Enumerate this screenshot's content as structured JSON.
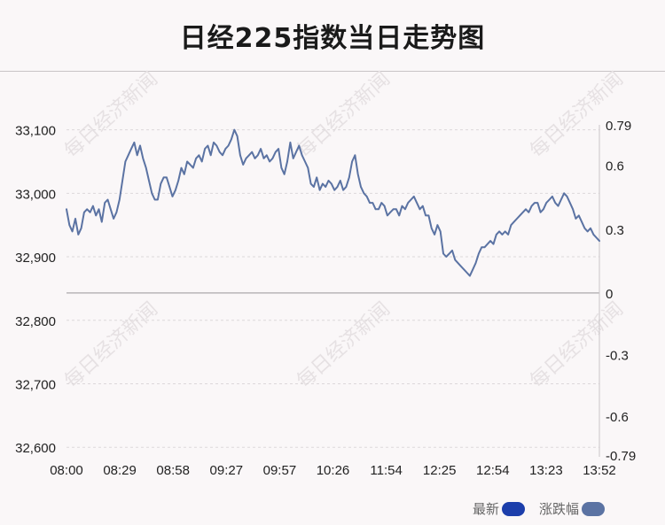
{
  "page": {
    "title": "日经225指数当日走势图",
    "watermark": "每日经济新闻"
  },
  "legend": {
    "latest_label": "最新",
    "latest_color": "#1c3eab",
    "change_label": "涨跌幅",
    "change_color": "#5b73a3"
  },
  "chart_data": {
    "type": "line",
    "xlabel": "",
    "ylabel": "",
    "x_ticks": [
      "08:00",
      "08:29",
      "08:58",
      "09:27",
      "09:57",
      "10:26",
      "11:54",
      "12:25",
      "12:54",
      "13:23",
      "13:52"
    ],
    "y_left_ticks": [
      {
        "value": 33100,
        "label": "33,100"
      },
      {
        "value": 33000,
        "label": "33,000"
      },
      {
        "value": 32900,
        "label": "32,900"
      },
      {
        "value": 32800,
        "label": "32,800"
      },
      {
        "value": 32700,
        "label": "32,700"
      },
      {
        "value": 32600,
        "label": "32,600"
      }
    ],
    "y_right_ticks": [
      {
        "value": 0.79,
        "label": "0.79"
      },
      {
        "value": 0.6,
        "label": "0.6"
      },
      {
        "value": 0.3,
        "label": "0.3"
      },
      {
        "value": 0,
        "label": "0"
      },
      {
        "value": -0.3,
        "label": "-0.3"
      },
      {
        "value": -0.6,
        "label": "-0.6"
      },
      {
        "value": -0.79,
        "label": "-0.79"
      }
    ],
    "ylim_left": [
      32585,
      33105
    ],
    "baseline": 32843,
    "grid": true,
    "line_color": "#5b73a3",
    "series": [
      {
        "values": [
          32975,
          32950,
          32940,
          32960,
          32935,
          32945,
          32970,
          32975,
          32970,
          32980,
          32965,
          32975,
          32955,
          32985,
          32990,
          32975,
          32960,
          32970,
          32990,
          33020,
          33050,
          33060,
          33070,
          33080,
          33060,
          33075,
          33055,
          33040,
          33020,
          33000,
          32990,
          32990,
          33015,
          33025,
          33025,
          33010,
          32995,
          33005,
          33020,
          33040,
          33030,
          33050,
          33045,
          33040,
          33055,
          33060,
          33050,
          33070,
          33075,
          33060,
          33080,
          33075,
          33065,
          33060,
          33070,
          33075,
          33085,
          33100,
          33090,
          33060,
          33045,
          33055,
          33060,
          33065,
          33055,
          33060,
          33070,
          33055,
          33060,
          33050,
          33055,
          33065,
          33070,
          33040,
          33030,
          33050,
          33080,
          33055,
          33065,
          33075,
          33060,
          33050,
          33040,
          33015,
          33010,
          33025,
          33005,
          33015,
          33010,
          33020,
          33015,
          33005,
          33010,
          33020,
          33005,
          33010,
          33025,
          33050,
          33060,
          33030,
          33010,
          33000,
          32995,
          32985,
          32985,
          32975,
          32975,
          32985,
          32980,
          32965,
          32970,
          32975,
          32975,
          32965,
          32980,
          32975,
          32985,
          32990,
          32995,
          32985,
          32975,
          32980,
          32965,
          32965,
          32945,
          32935,
          32950,
          32940,
          32905,
          32900,
          32905,
          32910,
          32895,
          32890,
          32885,
          32880,
          32875,
          32870,
          32880,
          32890,
          32905,
          32915,
          32915,
          32920,
          32925,
          32920,
          32935,
          32940,
          32935,
          32940,
          32935,
          32950,
          32955,
          32960,
          32965,
          32970,
          32975,
          32970,
          32980,
          32985,
          32985,
          32970,
          32975,
          32985,
          32990,
          32995,
          32985,
          32980,
          32990,
          33000,
          32995,
          32985,
          32975,
          32960,
          32965,
          32955,
          32945,
          32940,
          32945,
          32935,
          32930,
          32925
        ]
      }
    ]
  }
}
